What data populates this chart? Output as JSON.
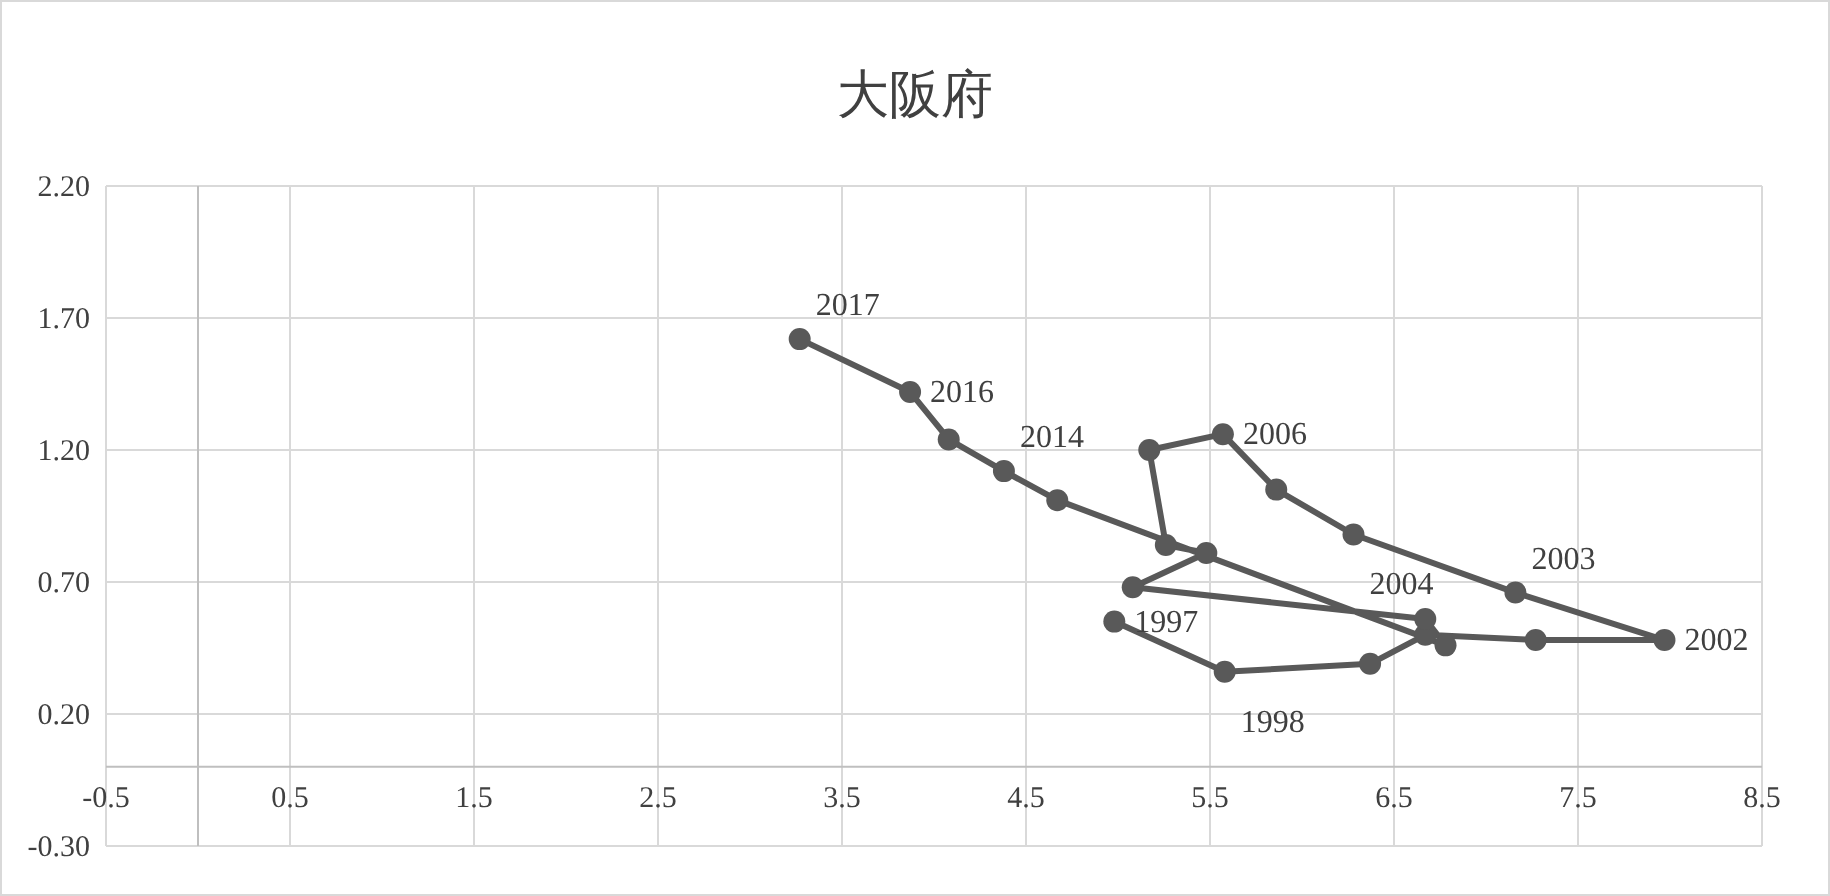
{
  "chart_data": {
    "type": "line",
    "title": "大阪府",
    "xlim": [
      -0.5,
      8.5
    ],
    "xticks": [
      -0.5,
      0.5,
      1.5,
      2.5,
      3.5,
      4.5,
      5.5,
      6.5,
      7.5,
      8.5
    ],
    "ylim": [
      -0.3,
      2.2
    ],
    "yticks": [
      {
        "value": -0.3,
        "label": "-0.30"
      },
      {
        "value": 0.2,
        "label": "0.20"
      },
      {
        "value": 0.7,
        "label": "0.70"
      },
      {
        "value": 1.2,
        "label": "1.20"
      },
      {
        "value": 1.7,
        "label": "1.70"
      },
      {
        "value": 2.2,
        "label": "2.20"
      }
    ],
    "grid": true,
    "marker": "circle",
    "line_style": "solid",
    "annotations": [
      {
        "text": "1997",
        "x": 4.98,
        "y": 0.55
      },
      {
        "text": "1998",
        "x": 5.58,
        "y": 0.36
      },
      {
        "text": "2002",
        "x": 7.97,
        "y": 0.48
      },
      {
        "text": "2003",
        "x": 7.16,
        "y": 0.66
      },
      {
        "text": "2004",
        "x": 6.28,
        "y": 0.88
      },
      {
        "text": "2006",
        "x": 5.57,
        "y": 1.26
      },
      {
        "text": "2014",
        "x": 4.38,
        "y": 1.12
      },
      {
        "text": "2016",
        "x": 3.87,
        "y": 1.42
      },
      {
        "text": "2017",
        "x": 3.27,
        "y": 1.62
      }
    ],
    "series": [
      {
        "color": "#595959",
        "x": [
          4.98,
          5.58,
          6.37,
          6.67,
          7.27,
          7.97,
          7.16,
          6.28,
          5.86,
          5.57,
          5.17,
          5.26,
          5.48,
          5.08,
          6.67,
          6.78,
          4.67,
          4.38,
          4.08,
          3.87,
          3.27
        ],
        "values": [
          0.55,
          0.36,
          0.39,
          0.5,
          0.48,
          0.48,
          0.66,
          0.88,
          1.05,
          1.26,
          1.2,
          0.84,
          0.81,
          0.68,
          0.56,
          0.46,
          1.01,
          1.12,
          1.24,
          1.42,
          1.62
        ]
      }
    ]
  }
}
